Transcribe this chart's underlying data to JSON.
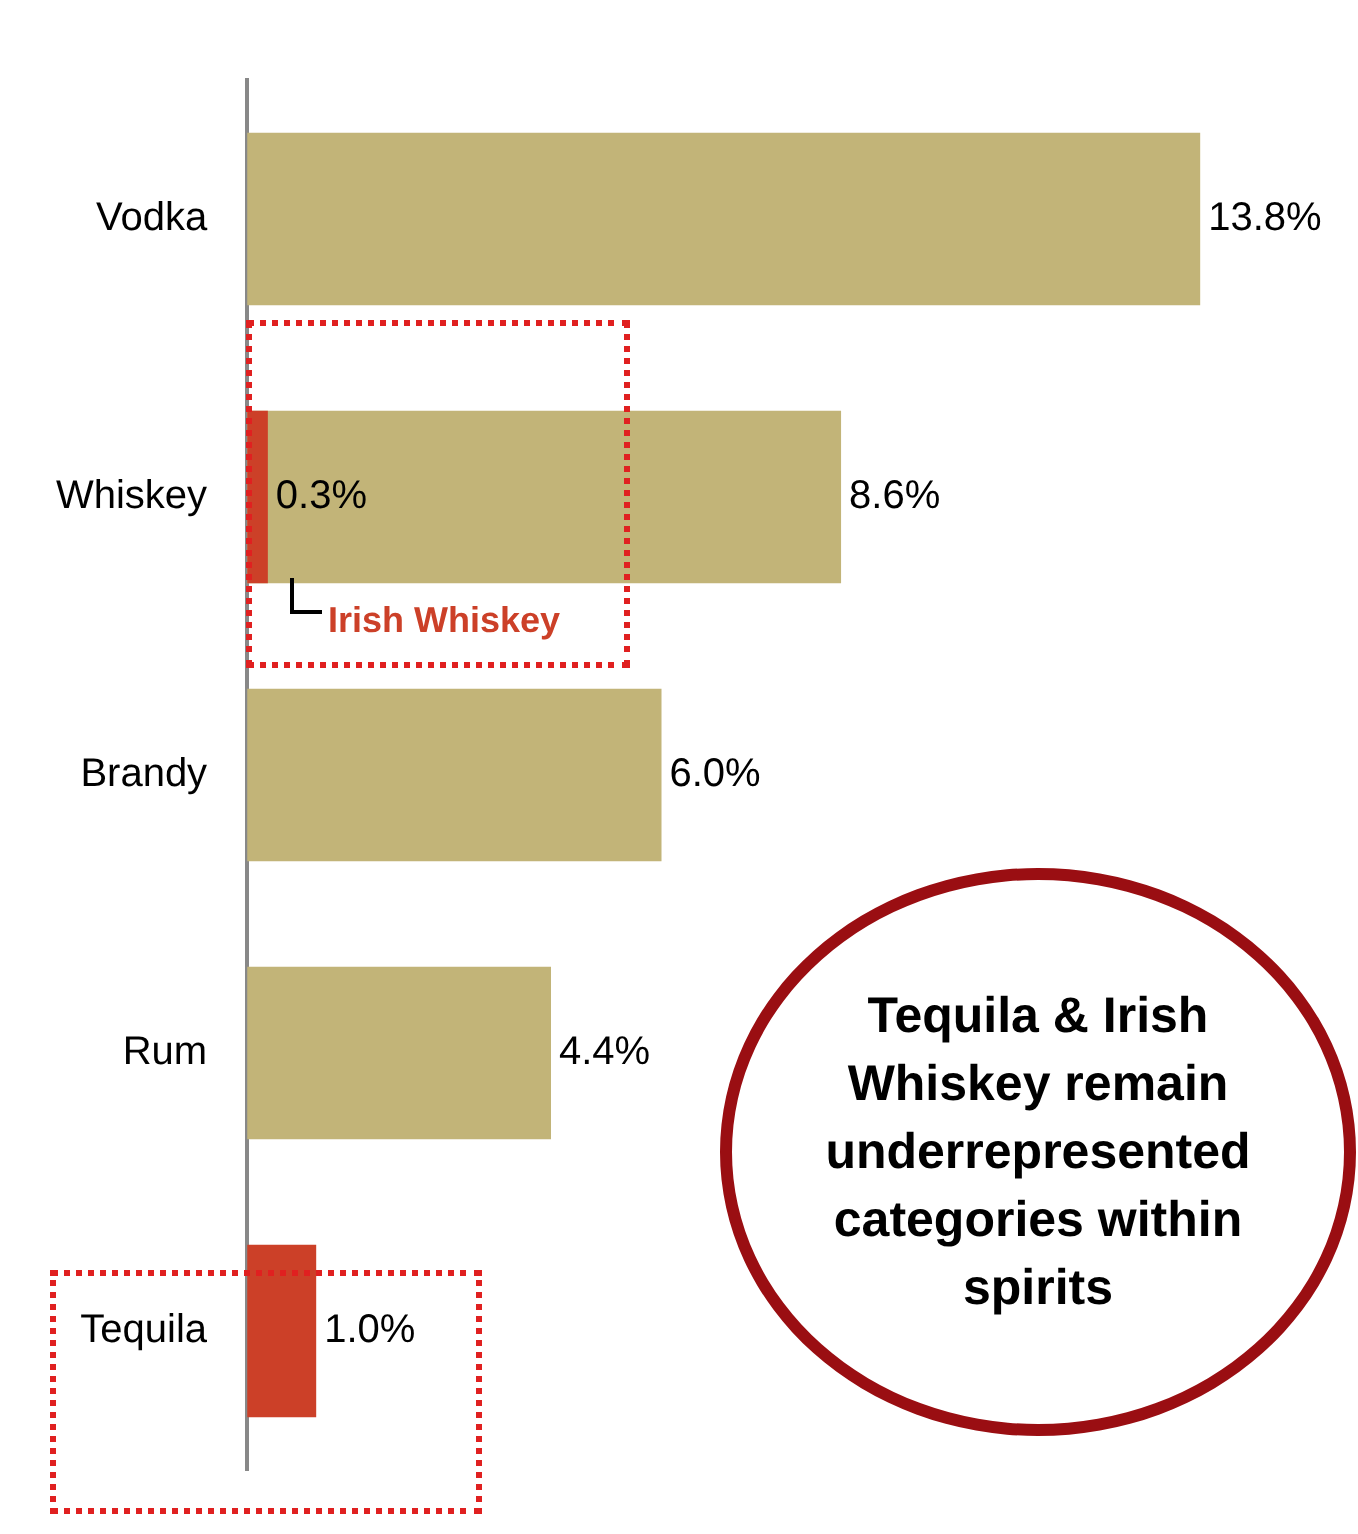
{
  "chart_data": {
    "type": "bar",
    "orientation": "horizontal",
    "categories": [
      "Vodka",
      "Whiskey",
      "Brandy",
      "Rum",
      "Tequila"
    ],
    "series": [
      {
        "color": "#c2b478",
        "values": [
          13.8,
          8.6,
          6.0,
          4.4,
          null
        ],
        "value_labels": [
          "13.8%",
          "8.6%",
          "6.0%",
          "4.4%",
          null
        ]
      },
      {
        "color": "#cc4028",
        "values": [
          null,
          0.3,
          null,
          null,
          1.0
        ],
        "value_labels": [
          null,
          "0.3%",
          null,
          null,
          "1.0%"
        ]
      }
    ],
    "annotations": [
      "Irish Whiskey",
      "Tequila & Irish Whiskey remain underrepresented categories within spirits"
    ],
    "grid": false,
    "legend": false
  }
}
